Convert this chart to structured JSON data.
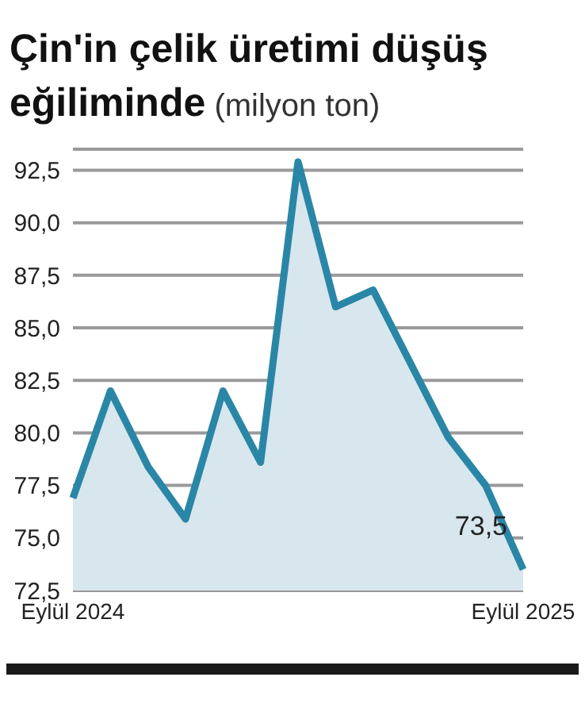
{
  "chart_data": {
    "type": "area",
    "title": "Çin'in çelik üretimi düşüş eğiliminde",
    "subtitle": "(milyon ton)",
    "categories": [
      "Eylül 2024",
      null,
      null,
      null,
      null,
      null,
      null,
      null,
      null,
      null,
      null,
      null,
      "Eylül 2025"
    ],
    "series": [
      {
        "color": "#2a86a6",
        "values": [
          76.9,
          82.0,
          78.4,
          75.9,
          82.0,
          78.6,
          92.9,
          86.0,
          86.8,
          83.3,
          79.8,
          77.5,
          73.5
        ],
        "value_labels": [
          null,
          null,
          null,
          null,
          null,
          null,
          null,
          null,
          null,
          null,
          null,
          null,
          "73,5"
        ]
      }
    ],
    "ylim": [
      72.5,
      93.5
    ],
    "yticks": [
      {
        "value": 72.5,
        "label": "72,5"
      },
      {
        "value": 75,
        "label": "75,0"
      },
      {
        "value": 77.5,
        "label": "77,5"
      },
      {
        "value": 80,
        "label": "80,0"
      },
      {
        "value": 82.5,
        "label": "82,5"
      },
      {
        "value": 85,
        "label": "85,0"
      },
      {
        "value": 87.5,
        "label": "87,5"
      },
      {
        "value": 90,
        "label": "90,0"
      },
      {
        "value": 92.5,
        "label": "92,5"
      }
    ],
    "grid": "y",
    "legend": false
  }
}
